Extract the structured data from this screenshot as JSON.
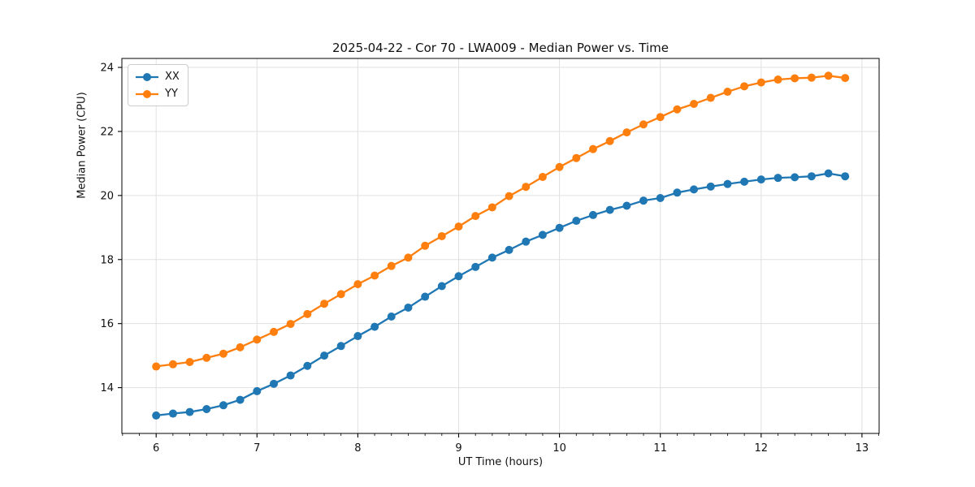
{
  "chart_data": {
    "type": "line",
    "title": "2025-04-22 - Cor 70 - LWA009 - Median Power vs. Time",
    "xlabel": "UT Time (hours)",
    "ylabel": "Median Power (CPU)",
    "xlim": [
      5.66,
      13.17
    ],
    "ylim": [
      12.57,
      24.28
    ],
    "x_ticks": [
      6,
      7,
      8,
      9,
      10,
      11,
      12,
      13
    ],
    "y_ticks": [
      14,
      16,
      18,
      20,
      22,
      24
    ],
    "x_minor_tick_step": 0.1666667,
    "grid": true,
    "grid_color": "#e0e0e0",
    "legend_position": "upper-left",
    "x": [
      6.0,
      6.167,
      6.333,
      6.5,
      6.667,
      6.833,
      7.0,
      7.167,
      7.333,
      7.5,
      7.667,
      7.833,
      8.0,
      8.167,
      8.333,
      8.5,
      8.667,
      8.833,
      9.0,
      9.167,
      9.333,
      9.5,
      9.667,
      9.833,
      10.0,
      10.167,
      10.333,
      10.5,
      10.667,
      10.833,
      11.0,
      11.167,
      11.333,
      11.5,
      11.667,
      11.833,
      12.0,
      12.167,
      12.333,
      12.5,
      12.667,
      12.833
    ],
    "series": [
      {
        "name": "XX",
        "color": "#1f77b4",
        "values": [
          13.13,
          13.19,
          13.24,
          13.33,
          13.45,
          13.62,
          13.89,
          14.12,
          14.38,
          14.68,
          15.0,
          15.3,
          15.61,
          15.9,
          16.22,
          16.5,
          16.84,
          17.17,
          17.48,
          17.77,
          18.06,
          18.3,
          18.56,
          18.77,
          18.99,
          19.21,
          19.39,
          19.55,
          19.68,
          19.84,
          19.92,
          20.09,
          20.19,
          20.28,
          20.36,
          20.43,
          20.5,
          20.55,
          20.57,
          20.6,
          20.69,
          20.6
        ]
      },
      {
        "name": "YY",
        "color": "#ff7f0e",
        "values": [
          14.66,
          14.73,
          14.8,
          14.93,
          15.06,
          15.26,
          15.5,
          15.74,
          15.99,
          16.3,
          16.62,
          16.92,
          17.23,
          17.5,
          17.8,
          18.06,
          18.43,
          18.73,
          19.03,
          19.36,
          19.63,
          19.98,
          20.27,
          20.58,
          20.89,
          21.17,
          21.45,
          21.7,
          21.97,
          22.22,
          22.45,
          22.69,
          22.86,
          23.05,
          23.24,
          23.41,
          23.53,
          23.62,
          23.66,
          23.68,
          23.74,
          23.67
        ]
      }
    ]
  }
}
